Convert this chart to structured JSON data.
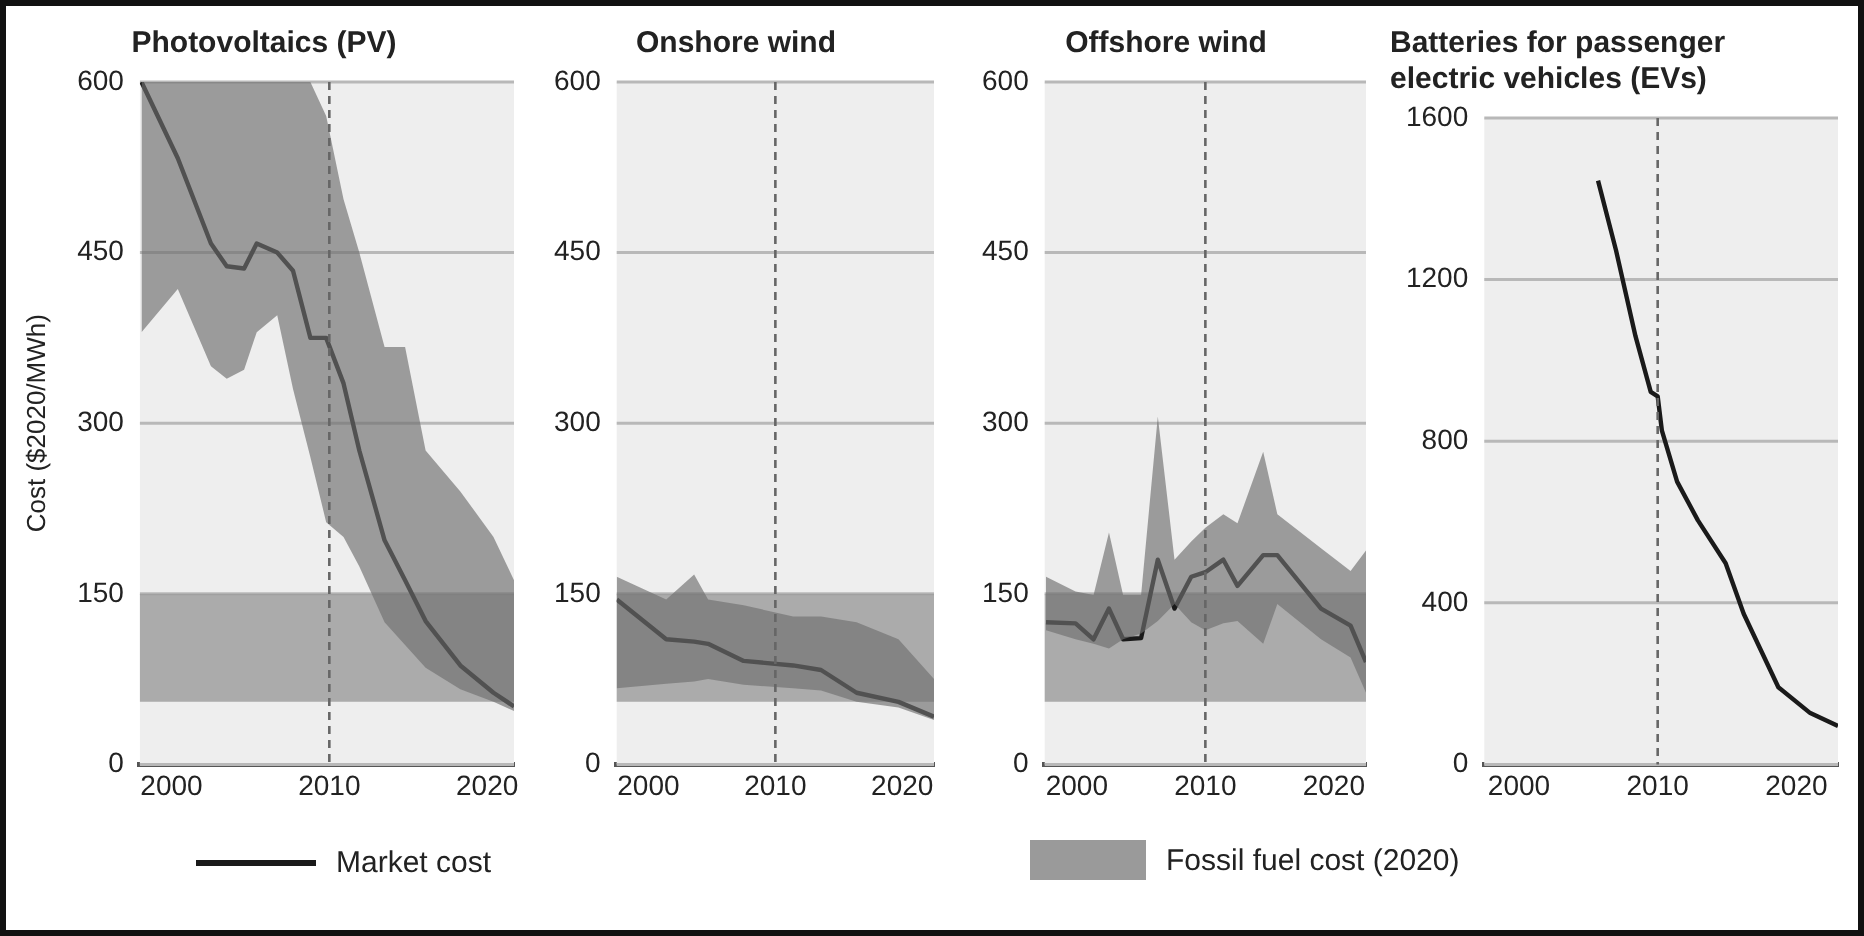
{
  "chart_data": [
    {
      "type": "line",
      "title": "Photovoltaics (PV)",
      "ylabel": "Cost ($2020/MWh)",
      "xlim": [
        1998,
        2021.7
      ],
      "xticks": [
        2000,
        2010,
        2020
      ],
      "ylim": [
        0,
        600
      ],
      "yticks": [
        0,
        150,
        300,
        450,
        600
      ],
      "grid": "y",
      "legend": "bottom",
      "series": [
        {
          "name": "Market cost",
          "color": "#1a1a1a",
          "x": [
            1998.1,
            2000.4,
            2002.5,
            2003.5,
            2004.6,
            2005.4,
            2006.7,
            2007.7,
            2008.8,
            2009.8,
            2010.9,
            2011.9,
            2013.5,
            2014.8,
            2016.1,
            2018.3,
            2020.4,
            2021.7
          ],
          "values": [
            600,
            533,
            458,
            438,
            436,
            458,
            450,
            434,
            375,
            375,
            335,
            276,
            197,
            162,
            126,
            87,
            63,
            51
          ],
          "lower": [
            380,
            418,
            350,
            339,
            347,
            380,
            395,
            330,
            270,
            213,
            200,
            174,
            125,
            105,
            85,
            66,
            55,
            47
          ],
          "upper": [
            600,
            600,
            600,
            600,
            600,
            600,
            600,
            600,
            600,
            570,
            497,
            450,
            367,
            367,
            276,
            240,
            200,
            162
          ]
        }
      ],
      "bands": [
        {
          "axis": "y",
          "from": 55,
          "to": 150,
          "label": "Fossil fuel cost (2020)",
          "color": "#9a9a9a"
        }
      ],
      "ref_lines": [
        {
          "axis": "x",
          "value": 2010,
          "color": "#666666",
          "line_style": "dashed"
        }
      ]
    },
    {
      "type": "line",
      "title": "Onshore wind",
      "xlim": [
        1997.5,
        2022.5
      ],
      "xticks": [
        2000,
        2010,
        2020
      ],
      "ylim": [
        0,
        600
      ],
      "yticks": [
        0,
        150,
        300,
        450,
        600
      ],
      "grid": "y",
      "series": [
        {
          "color": "#1a1a1a",
          "x": [
            1997.5,
            2001.4,
            2003.6,
            2004.7,
            2007.5,
            2011.4,
            2013.6,
            2016.4,
            2019.7,
            2022.5
          ],
          "values": [
            145,
            110,
            108,
            106,
            91,
            87,
            83,
            63,
            55,
            42
          ],
          "lower": [
            67,
            71,
            73,
            75,
            70,
            67,
            65,
            55,
            50,
            39
          ],
          "upper": [
            165,
            145,
            167,
            145,
            140,
            130,
            130,
            125,
            110,
            75
          ]
        }
      ],
      "bands": [
        {
          "axis": "y",
          "from": 55,
          "to": 150,
          "color": "#9a9a9a"
        }
      ],
      "ref_lines": [
        {
          "axis": "x",
          "value": 2010,
          "color": "#666666",
          "line_style": "dashed"
        }
      ]
    },
    {
      "type": "line",
      "title": "Offshore wind",
      "xlim": [
        1997.5,
        2022.5
      ],
      "xticks": [
        2000,
        2010,
        2020
      ],
      "ylim": [
        0,
        600
      ],
      "yticks": [
        0,
        150,
        300,
        450,
        600
      ],
      "grid": "y",
      "series": [
        {
          "color": "#1a1a1a",
          "x": [
            1997.6,
            1999.9,
            2001.3,
            2002.5,
            2003.6,
            2005,
            2006.3,
            2007.6,
            2008.9,
            2010,
            2011.4,
            2012.5,
            2014.5,
            2015.6,
            2019,
            2021.3,
            2022.5
          ],
          "values": [
            125,
            124,
            110,
            137,
            110,
            111,
            180,
            137,
            165,
            169,
            180,
            157,
            184,
            184,
            137,
            122,
            90
          ],
          "lower": [
            118,
            110,
            106,
            102,
            110,
            115,
            126,
            141,
            125,
            118,
            124,
            126,
            106,
            141,
            110,
            94,
            63
          ],
          "upper": [
            165,
            152,
            149,
            204,
            149,
            149,
            306,
            180,
            196,
            208,
            220,
            212,
            275,
            220,
            190,
            170,
            188
          ]
        }
      ],
      "bands": [
        {
          "axis": "y",
          "from": 55,
          "to": 150,
          "color": "#9a9a9a"
        }
      ],
      "ref_lines": [
        {
          "axis": "x",
          "value": 2010,
          "color": "#666666",
          "line_style": "dashed"
        }
      ]
    },
    {
      "type": "line",
      "title": "Batteries for passenger electric vehicles (EVs)",
      "xlim": [
        1997.5,
        2023
      ],
      "xticks": [
        2000,
        2010,
        2020
      ],
      "ylim": [
        0,
        1600
      ],
      "yticks": [
        0,
        400,
        800,
        1200,
        1600
      ],
      "grid": "y",
      "series": [
        {
          "color": "#1a1a1a",
          "x": [
            2005.7,
            2007,
            2008.4,
            2009.5,
            2010,
            2010.3,
            2011.4,
            2012.9,
            2014.9,
            2016.2,
            2018.7,
            2021,
            2023
          ],
          "values": [
            1445,
            1272,
            1060,
            922,
            911,
            827,
            700,
            604,
            498,
            373,
            191,
            127,
            95
          ]
        }
      ],
      "ref_lines": [
        {
          "axis": "x",
          "value": 2010,
          "color": "#666666",
          "line_style": "dashed"
        }
      ]
    }
  ]
}
